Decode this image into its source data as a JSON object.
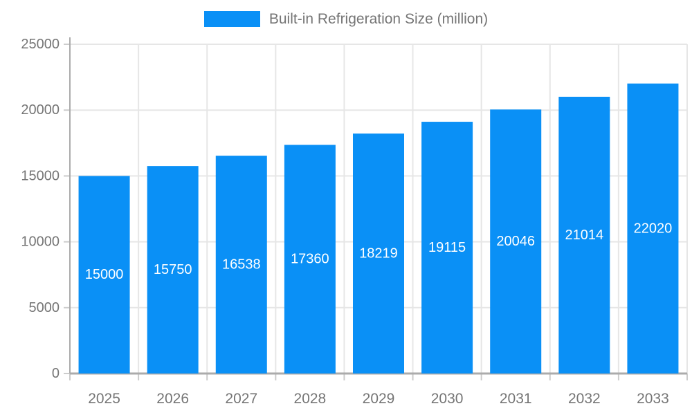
{
  "chart_data": {
    "type": "bar",
    "title": "Built-in Refrigeration Size (million)",
    "categories": [
      "2025",
      "2026",
      "2027",
      "2028",
      "2029",
      "2030",
      "2031",
      "2032",
      "2033"
    ],
    "values": [
      15000,
      15750,
      16538,
      17360,
      18219,
      19115,
      20046,
      21014,
      22020
    ],
    "xlabel": "",
    "ylabel": "",
    "ylim": [
      0,
      25000
    ],
    "yticks": [
      0,
      5000,
      10000,
      15000,
      20000,
      25000
    ],
    "grid": true,
    "legend_position": "top-center",
    "bar_color": "#0a90f6",
    "bar_label_color": "#ffffff",
    "axis_text_color": "#757575",
    "grid_color": "#e6e6e6",
    "axis_line_color": "#ababab",
    "tick_color": "#cccccc"
  }
}
